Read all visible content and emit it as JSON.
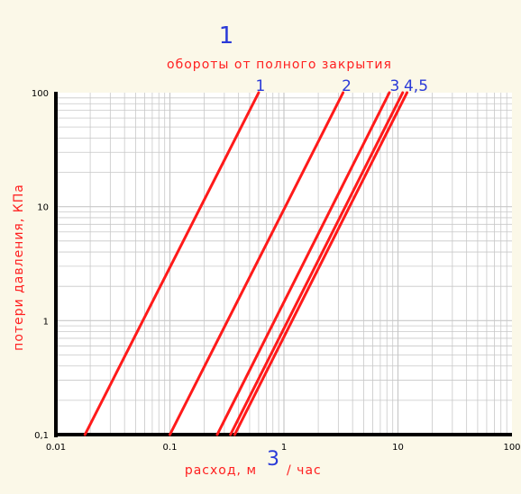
{
  "figure": {
    "label": "1",
    "subtitle": "обороты от полного закрытия"
  },
  "colors": {
    "background": "#fbf8e8",
    "frame": "#ffffff",
    "grid": "#c8c8c8",
    "axis": "#000000",
    "curve": "#ff1a1a",
    "label_red": "#ff2020",
    "label_blue": "#2a3ad8",
    "tick_text": "#000000"
  },
  "chart_data": {
    "type": "line",
    "title": "1",
    "subtitle": "обороты от полного закрытия",
    "xlabel": "расход, м",
    "xlabel_superscript": "3",
    "xlabel_suffix": "/ час",
    "ylabel": "потери давления, КПа",
    "x_scale": "log",
    "y_scale": "log",
    "xlim": [
      0.01,
      100
    ],
    "ylim": [
      0.1,
      100
    ],
    "x_ticks": [
      "0.01",
      "0.1",
      "1",
      "10",
      "100"
    ],
    "y_ticks": [
      "0,1",
      "1",
      "10",
      "100"
    ],
    "grid": true,
    "series": [
      {
        "name": "1",
        "x": [
          0.018,
          0.6
        ],
        "y": [
          0.1,
          100
        ]
      },
      {
        "name": "2",
        "x": [
          0.1,
          3.3
        ],
        "y": [
          0.1,
          100
        ]
      },
      {
        "name": "3",
        "x": [
          0.26,
          8.4
        ],
        "y": [
          0.1,
          100
        ]
      },
      {
        "name": "4",
        "x": [
          0.34,
          11.0
        ],
        "y": [
          0.1,
          100
        ]
      },
      {
        "name": "5",
        "x": [
          0.37,
          12.0
        ],
        "y": [
          0.1,
          100
        ]
      }
    ],
    "series_labels": [
      "1",
      "2",
      "3",
      "4,5"
    ]
  }
}
